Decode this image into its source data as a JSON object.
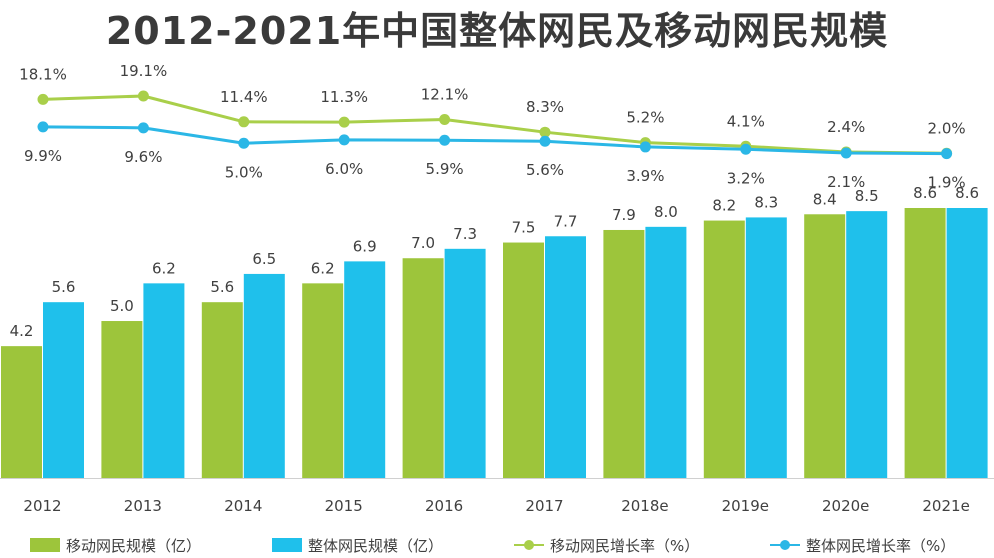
{
  "title": "2012-2021年中国整体网民及移动网民规模",
  "colors": {
    "mobile": "#9dc53b",
    "overall": "#1fc0eb",
    "mobile_line": "#a9cf4a",
    "overall_line": "#2bb7e6",
    "axis": "#d0d0d0"
  },
  "chart_data": {
    "type": "bar",
    "categories": [
      "2012",
      "2013",
      "2014",
      "2015",
      "2016",
      "2017",
      "2018e",
      "2019e",
      "2020e",
      "2021e"
    ],
    "series": [
      {
        "name": "移动网民规模（亿）",
        "kind": "bar",
        "values": [
          4.2,
          5.0,
          5.6,
          6.2,
          7.0,
          7.5,
          7.9,
          8.2,
          8.4,
          8.6
        ]
      },
      {
        "name": "整体网民规模（亿）",
        "kind": "bar",
        "values": [
          5.6,
          6.2,
          6.5,
          6.9,
          7.3,
          7.7,
          8.0,
          8.3,
          8.5,
          8.6
        ]
      },
      {
        "name": "移动网民增长率（%）",
        "kind": "line",
        "values": [
          18.1,
          19.1,
          11.4,
          11.3,
          12.1,
          8.3,
          5.2,
          4.1,
          2.4,
          2.0
        ]
      },
      {
        "name": "整体网民增长率（%）",
        "kind": "line",
        "values": [
          9.9,
          9.6,
          5.0,
          6.0,
          5.9,
          5.6,
          3.9,
          3.2,
          2.1,
          1.9
        ]
      }
    ],
    "bar_labels": {
      "mobile": [
        "4.2",
        "5.0",
        "5.6",
        "6.2",
        "7.0",
        "7.5",
        "7.9",
        "8.2",
        "8.4",
        "8.6"
      ],
      "overall": [
        "5.6",
        "6.2",
        "6.5",
        "6.9",
        "7.3",
        "7.7",
        "8.0",
        "8.3",
        "8.5",
        "8.6"
      ]
    },
    "line_labels": {
      "mobile": [
        "18.1%",
        "19.1%",
        "11.4%",
        "11.3%",
        "12.1%",
        "8.3%",
        "5.2%",
        "4.1%",
        "2.4%",
        "2.0%"
      ],
      "overall": [
        "9.9%",
        "9.6%",
        "5.0%",
        "6.0%",
        "5.9%",
        "5.6%",
        "3.9%",
        "3.2%",
        "2.1%",
        "1.9%"
      ]
    },
    "ylim_bars": [
      0,
      10
    ],
    "ylim_lines": [
      0,
      20
    ],
    "grid": false,
    "legend_position": "bottom"
  },
  "legend": [
    {
      "label": "移动网民规模（亿）",
      "style": "box",
      "color_key": "mobile"
    },
    {
      "label": "整体网民规模（亿）",
      "style": "box",
      "color_key": "overall"
    },
    {
      "label": "移动网民增长率（%）",
      "style": "line",
      "color_key": "mobile_line"
    },
    {
      "label": "整体网民增长率（%）",
      "style": "line",
      "color_key": "overall_line"
    }
  ]
}
